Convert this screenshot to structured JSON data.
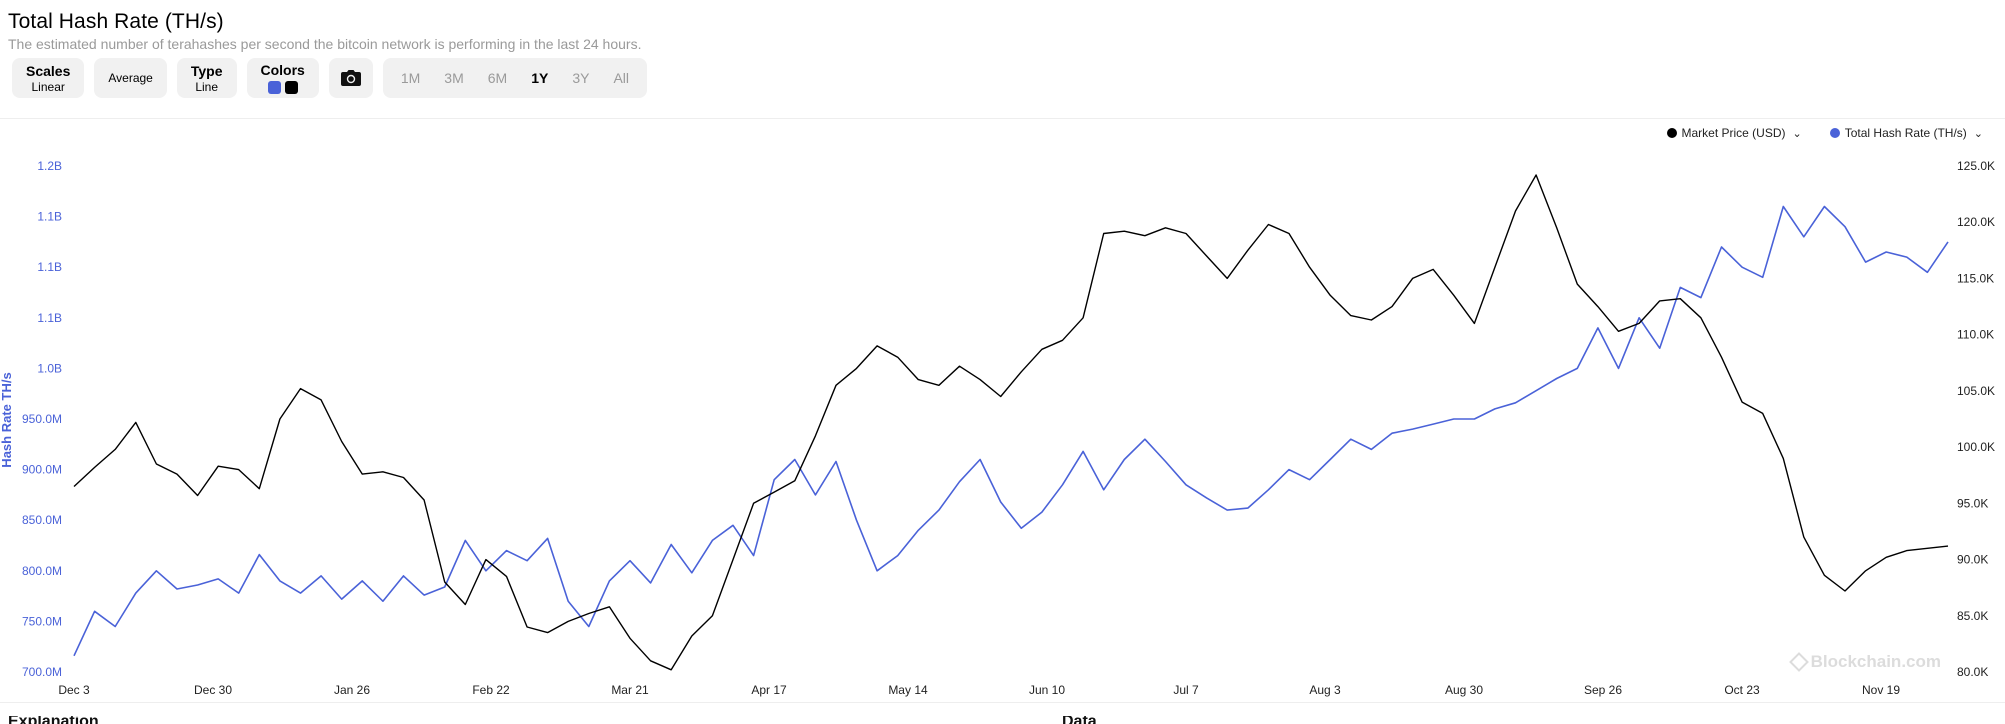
{
  "header": {
    "title": "Total Hash Rate (TH/s)",
    "subtitle": "The estimated number of terahashes per second the bitcoin network is performing in the last 24 hours."
  },
  "toolbar": {
    "scales_label": "Scales",
    "scales_value": "Linear",
    "average_label": "Average",
    "type_label": "Type",
    "type_value": "Line",
    "colors_label": "Colors",
    "colors": [
      "#4a62d8",
      "#000000"
    ],
    "camera_icon": "camera-icon",
    "ranges": [
      "1M",
      "3M",
      "6M",
      "1Y",
      "3Y",
      "All"
    ],
    "active_range": "1Y"
  },
  "legend": {
    "items": [
      {
        "label": "Market Price (USD)",
        "color": "#000000"
      },
      {
        "label": "Total Hash Rate (TH/s)",
        "color": "#4a62d8"
      }
    ]
  },
  "watermark": "Blockchain.com",
  "footer_headings": [
    "Explanation",
    "Data"
  ],
  "chart_data": {
    "type": "line",
    "x_ticks": [
      "Dec 3",
      "Dec 30",
      "Jan 26",
      "Feb 22",
      "Mar 21",
      "Apr 17",
      "May 14",
      "Jun 10",
      "Jul 7",
      "Aug 3",
      "Aug 30",
      "Sep 26",
      "Oct 23",
      "Nov 19"
    ],
    "left_axis": {
      "label": "Hash Rate TH/s",
      "ticks": [
        "700.0M",
        "750.0M",
        "800.0M",
        "850.0M",
        "900.0M",
        "950.0M",
        "1.0B",
        "1.1B",
        "1.1B",
        "1.1B",
        "1.2B"
      ],
      "range": [
        700000000,
        1200000000
      ]
    },
    "right_axis": {
      "ticks": [
        "80.0K",
        "85.0K",
        "90.0K",
        "95.0K",
        "100.0K",
        "105.0K",
        "110.0K",
        "115.0K",
        "120.0K",
        "125.0K"
      ],
      "range": [
        80000,
        125000
      ]
    },
    "series": [
      {
        "name": "Total Hash Rate (TH/s)",
        "axis": "left",
        "color": "#4a62d8",
        "x": [
          0,
          4,
          8,
          12,
          16,
          20,
          24,
          28,
          32,
          36,
          40,
          44,
          48,
          52,
          56,
          60,
          64,
          68,
          72,
          76,
          80,
          84,
          88,
          92,
          96,
          100,
          104,
          108,
          112,
          116,
          120,
          124,
          128,
          132,
          136,
          140,
          144,
          148,
          152,
          156,
          160,
          164,
          168,
          172,
          176,
          180,
          184,
          188,
          192,
          196,
          200,
          204,
          208,
          212,
          216,
          220,
          224,
          228,
          232,
          236,
          240,
          244,
          248,
          252,
          256,
          260,
          264,
          268,
          272,
          276,
          280,
          284,
          288,
          292,
          296,
          300,
          304,
          308,
          312,
          316,
          320,
          324,
          328,
          332,
          336,
          340,
          344,
          348,
          352,
          356,
          360,
          364
        ],
        "values": [
          716,
          760,
          745,
          778,
          800,
          782,
          786,
          792,
          778,
          816,
          790,
          778,
          795,
          772,
          790,
          770,
          795,
          776,
          784,
          830,
          800,
          820,
          810,
          832,
          770,
          745,
          790,
          810,
          788,
          826,
          798,
          830,
          845,
          815,
          890,
          910,
          875,
          908,
          850,
          800,
          815,
          840,
          860,
          888,
          910,
          868,
          842,
          858,
          885,
          918,
          880,
          910,
          930,
          908,
          885,
          872,
          860,
          862,
          880,
          900,
          890,
          910,
          930,
          920,
          936,
          940,
          945,
          950,
          950,
          960,
          966,
          978,
          990,
          1000,
          1040,
          1000,
          1050,
          1020,
          1080,
          1070,
          1120,
          1100,
          1090,
          1160,
          1130,
          1160,
          1140,
          1105,
          1115,
          1110,
          1095,
          1125
        ]
      },
      {
        "name": "Market Price (USD)",
        "axis": "right",
        "color": "#000000",
        "x": [
          0,
          4,
          8,
          12,
          16,
          20,
          24,
          28,
          32,
          36,
          40,
          44,
          48,
          52,
          56,
          60,
          64,
          68,
          72,
          76,
          80,
          84,
          88,
          92,
          96,
          100,
          104,
          108,
          112,
          116,
          120,
          124,
          128,
          132,
          136,
          140,
          144,
          148,
          152,
          156,
          160,
          164,
          168,
          172,
          176,
          180,
          184,
          188,
          192,
          196,
          200,
          204,
          208,
          212,
          216,
          220,
          224,
          228,
          232,
          236,
          240,
          244,
          248,
          252,
          256,
          260,
          264,
          268,
          272,
          276,
          280,
          284,
          288,
          292,
          296,
          300,
          304,
          308,
          312,
          316,
          320,
          324,
          328,
          332,
          336,
          340,
          344,
          348,
          352,
          356,
          360,
          364
        ],
        "values": [
          96.5,
          98.2,
          99.8,
          102.2,
          98.5,
          97.6,
          95.7,
          98.3,
          98.0,
          96.3,
          102.5,
          105.2,
          104.2,
          100.5,
          97.6,
          97.8,
          97.3,
          95.3,
          88.0,
          86.0,
          90.0,
          88.5,
          84.0,
          83.5,
          84.5,
          85.2,
          85.8,
          83.0,
          81.0,
          80.2,
          83.2,
          85.0,
          90.0,
          95.0,
          96.0,
          97.0,
          101.0,
          105.5,
          107.0,
          109.0,
          108.0,
          106.0,
          105.5,
          107.2,
          106.0,
          104.5,
          106.7,
          108.7,
          109.5,
          111.5,
          119.0,
          119.2,
          118.8,
          119.5,
          119.0,
          117.0,
          115.0,
          117.5,
          119.8,
          119.0,
          116.0,
          113.5,
          111.7,
          111.3,
          112.5,
          115.0,
          115.8,
          113.5,
          111.0,
          116.0,
          121.0,
          124.2,
          119.5,
          114.5,
          112.5,
          110.3,
          111.0,
          113.0,
          113.2,
          111.5,
          108.0,
          104.0,
          103.0,
          99.0,
          92.0,
          88.6,
          87.2,
          89.0,
          90.2,
          90.8,
          91.0,
          91.2
        ]
      }
    ],
    "grid": false,
    "legend_position": "top-right"
  }
}
